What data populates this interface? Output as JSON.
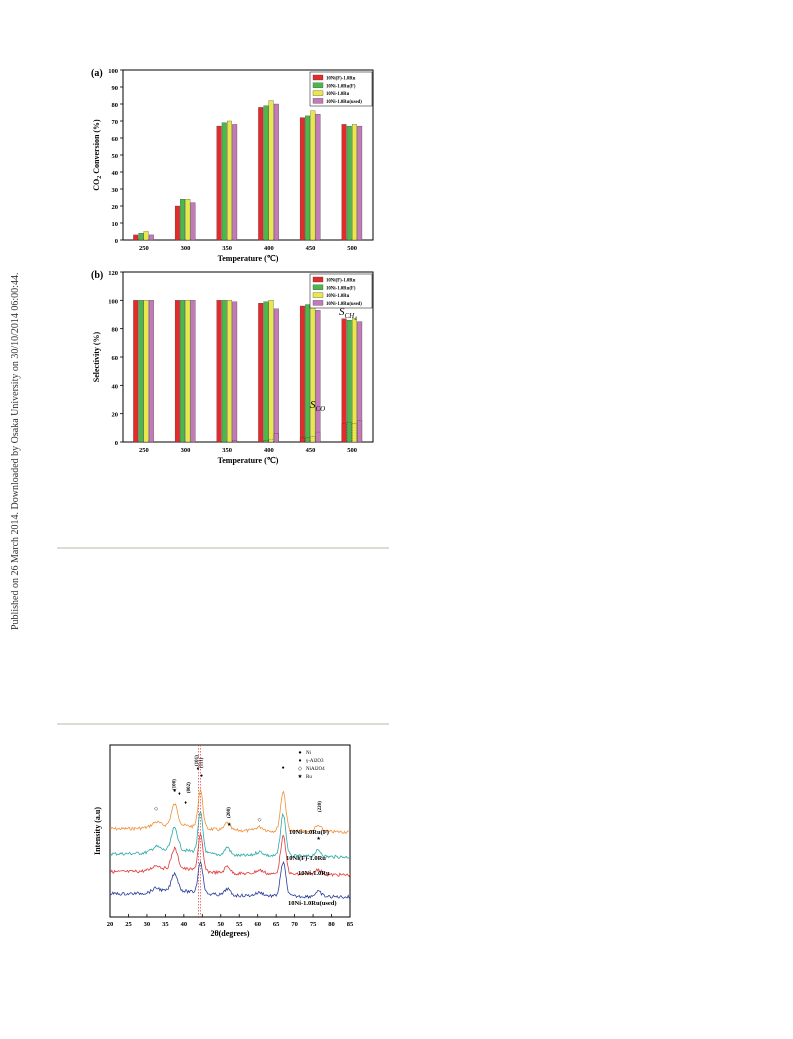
{
  "sidebar_note": "Published on 26 March 2014. Downloaded by Osaka University on 30/10/2014 06:00:44.",
  "chart_data": [
    {
      "type": "bar",
      "panel_label": "(a)",
      "categories": [
        "250",
        "300",
        "350",
        "400",
        "450",
        "500"
      ],
      "series": [
        {
          "name": "10Ni(F)-1.0Ru",
          "color": "#e42b2b",
          "values": [
            3,
            20,
            67,
            78,
            72,
            68
          ]
        },
        {
          "name": "10Ni-1.0Ru(F)",
          "color": "#4db84a",
          "values": [
            4,
            24,
            69,
            79,
            73,
            67
          ]
        },
        {
          "name": "10Ni-1.0Ru",
          "color": "#e8e84a",
          "values": [
            5,
            24,
            70,
            82,
            76,
            68
          ]
        },
        {
          "name": "10Ni-1.0Ru(used)",
          "color": "#c47ab8",
          "values": [
            3,
            22,
            68,
            80,
            74,
            67
          ]
        }
      ],
      "ylabel": "CO2 Conversion (%)",
      "ylabel_parts": [
        "CO",
        "2",
        " Conversion (%)"
      ],
      "xlabel": "Temperature (℃)",
      "ylim": [
        0,
        100
      ],
      "yticks": [
        0,
        10,
        20,
        30,
        40,
        50,
        60,
        70,
        80,
        90,
        100
      ],
      "legend_position": "top-right"
    },
    {
      "type": "bar",
      "panel_label": "(b)",
      "categories": [
        "250",
        "300",
        "350",
        "400",
        "450",
        "500"
      ],
      "series": [
        {
          "name": "10Ni(F)-1.0Ru",
          "color": "#e42b2b",
          "values": [
            100,
            100,
            100,
            98,
            96,
            87
          ]
        },
        {
          "name": "10Ni-1.0Ru(F)",
          "color": "#4db84a",
          "values": [
            100,
            100,
            100,
            99,
            97,
            86
          ]
        },
        {
          "name": "10Ni-1.0Ru",
          "color": "#e8e84a",
          "values": [
            100,
            100,
            100,
            100,
            97,
            87
          ]
        },
        {
          "name": "10Ni-1.0Ru(used)",
          "color": "#c47ab8",
          "values": [
            100,
            100,
            99,
            94,
            93,
            85
          ]
        }
      ],
      "co_series": [
        {
          "name": "10Ni(F)-1.0Ru",
          "values": [
            0,
            0,
            0,
            0,
            3,
            13
          ]
        },
        {
          "name": "10Ni-1.0Ru(F)",
          "values": [
            0,
            0,
            0,
            1,
            3,
            14
          ]
        },
        {
          "name": "10Ni-1.0Ru",
          "values": [
            0,
            0,
            0,
            2,
            4,
            13
          ]
        },
        {
          "name": "10Ni-1.0Ru(used)",
          "values": [
            0,
            0,
            1,
            6,
            7,
            15
          ]
        }
      ],
      "annotations": [
        {
          "main": "S",
          "sub": "CH",
          "sub2": "4"
        },
        {
          "main": "S",
          "sub": "CO"
        }
      ],
      "ylabel": "Selectivity (%)",
      "xlabel": "Temperature (℃)",
      "ylim": [
        0,
        120
      ],
      "yticks": [
        0,
        20,
        40,
        60,
        80,
        100,
        120
      ],
      "legend_position": "top-right"
    },
    {
      "type": "line",
      "xlabel": "2θ(degrees)",
      "ylabel": "Intensity (a.u)",
      "xlim": [
        20,
        85
      ],
      "xticks": [
        20,
        25,
        30,
        35,
        40,
        45,
        50,
        55,
        60,
        65,
        70,
        75,
        80,
        85
      ],
      "series": [
        {
          "name": "10Ni-1.0Ru(F)",
          "color": "#f0913a"
        },
        {
          "name": "10Ni(F)-1.0Ru",
          "color": "#2aa8a8"
        },
        {
          "name": "10Ni-1.0Ru",
          "color": "#e03a3a"
        },
        {
          "name": "10Ni-1.0Ru(used)",
          "color": "#2a3f9a"
        }
      ],
      "peaks": [
        {
          "x": 37.5,
          "height": 0.55,
          "width": 1.2
        },
        {
          "x": 44.5,
          "height": 1.0,
          "width": 0.9
        },
        {
          "x": 51.8,
          "height": 0.2,
          "width": 1.0
        },
        {
          "x": 66.9,
          "height": 1.05,
          "width": 1.0
        },
        {
          "x": 76.4,
          "height": 0.15,
          "width": 1.2
        },
        {
          "x": 32.5,
          "height": 0.12,
          "width": 1.5
        },
        {
          "x": 60.5,
          "height": 0.1,
          "width": 1.5
        }
      ],
      "legend": [
        {
          "symbol": "●",
          "label": "Ni"
        },
        {
          "symbol": "♦",
          "label": "γ-Al2O3"
        },
        {
          "symbol": "◇",
          "label": "NiAl2O4"
        },
        {
          "symbol": "★",
          "label": "Ru"
        }
      ],
      "peak_labels": [
        {
          "x": 37.8,
          "text": "(100)"
        },
        {
          "x": 41.6,
          "text": "(002)"
        },
        {
          "x": 43.8,
          "text": "(101)"
        },
        {
          "x": 45.0,
          "text": "(111)"
        },
        {
          "x": 52.5,
          "text": "(200)"
        },
        {
          "x": 77.2,
          "text": "(220)"
        }
      ],
      "reference_lines": [
        44.0,
        44.5
      ]
    }
  ]
}
